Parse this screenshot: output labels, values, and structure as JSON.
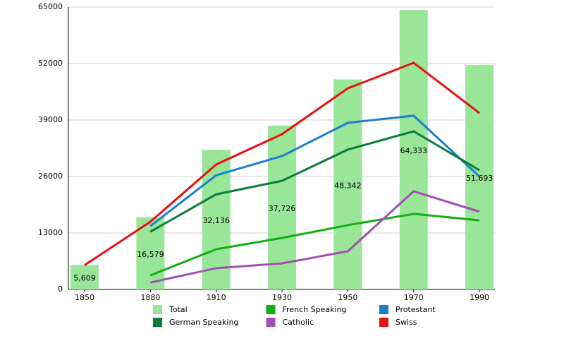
{
  "chart_data": {
    "type": "combo",
    "categories": [
      "1850",
      "1880",
      "1910",
      "1930",
      "1950",
      "1970",
      "1990"
    ],
    "ylim": [
      0,
      65000
    ],
    "yticks": [
      0,
      13000,
      26000,
      39000,
      52000,
      65000
    ],
    "grid": true,
    "series": [
      {
        "name": "Total",
        "type": "bar",
        "color": "#99e699",
        "values": [
          5609,
          16579,
          32136,
          37726,
          48342,
          64333,
          51693
        ],
        "value_labels": [
          "5,609",
          "16,579",
          "32,136",
          "37,726",
          "48,342",
          "64,333",
          "51,693"
        ]
      },
      {
        "name": "French Speaking",
        "type": "line",
        "color": "#11b011",
        "values": [
          null,
          3250,
          9260,
          11860,
          14800,
          17400,
          15900
        ]
      },
      {
        "name": "Protestant",
        "type": "line",
        "color": "#1a7fcf",
        "values": [
          null,
          14600,
          26300,
          30700,
          38350,
          40000,
          26000
        ]
      },
      {
        "name": "German Speaking",
        "type": "line",
        "color": "#0a7d3a",
        "values": [
          null,
          13300,
          21900,
          25000,
          32200,
          36400,
          27450
        ]
      },
      {
        "name": "Catholic",
        "type": "line",
        "color": "#a050b0",
        "values": [
          null,
          1600,
          4900,
          6000,
          8800,
          22600,
          17900
        ]
      },
      {
        "name": "Swiss",
        "type": "line",
        "color": "#e81010",
        "values": [
          5609,
          15600,
          28760,
          35750,
          46300,
          52160,
          40600
        ]
      }
    ]
  }
}
